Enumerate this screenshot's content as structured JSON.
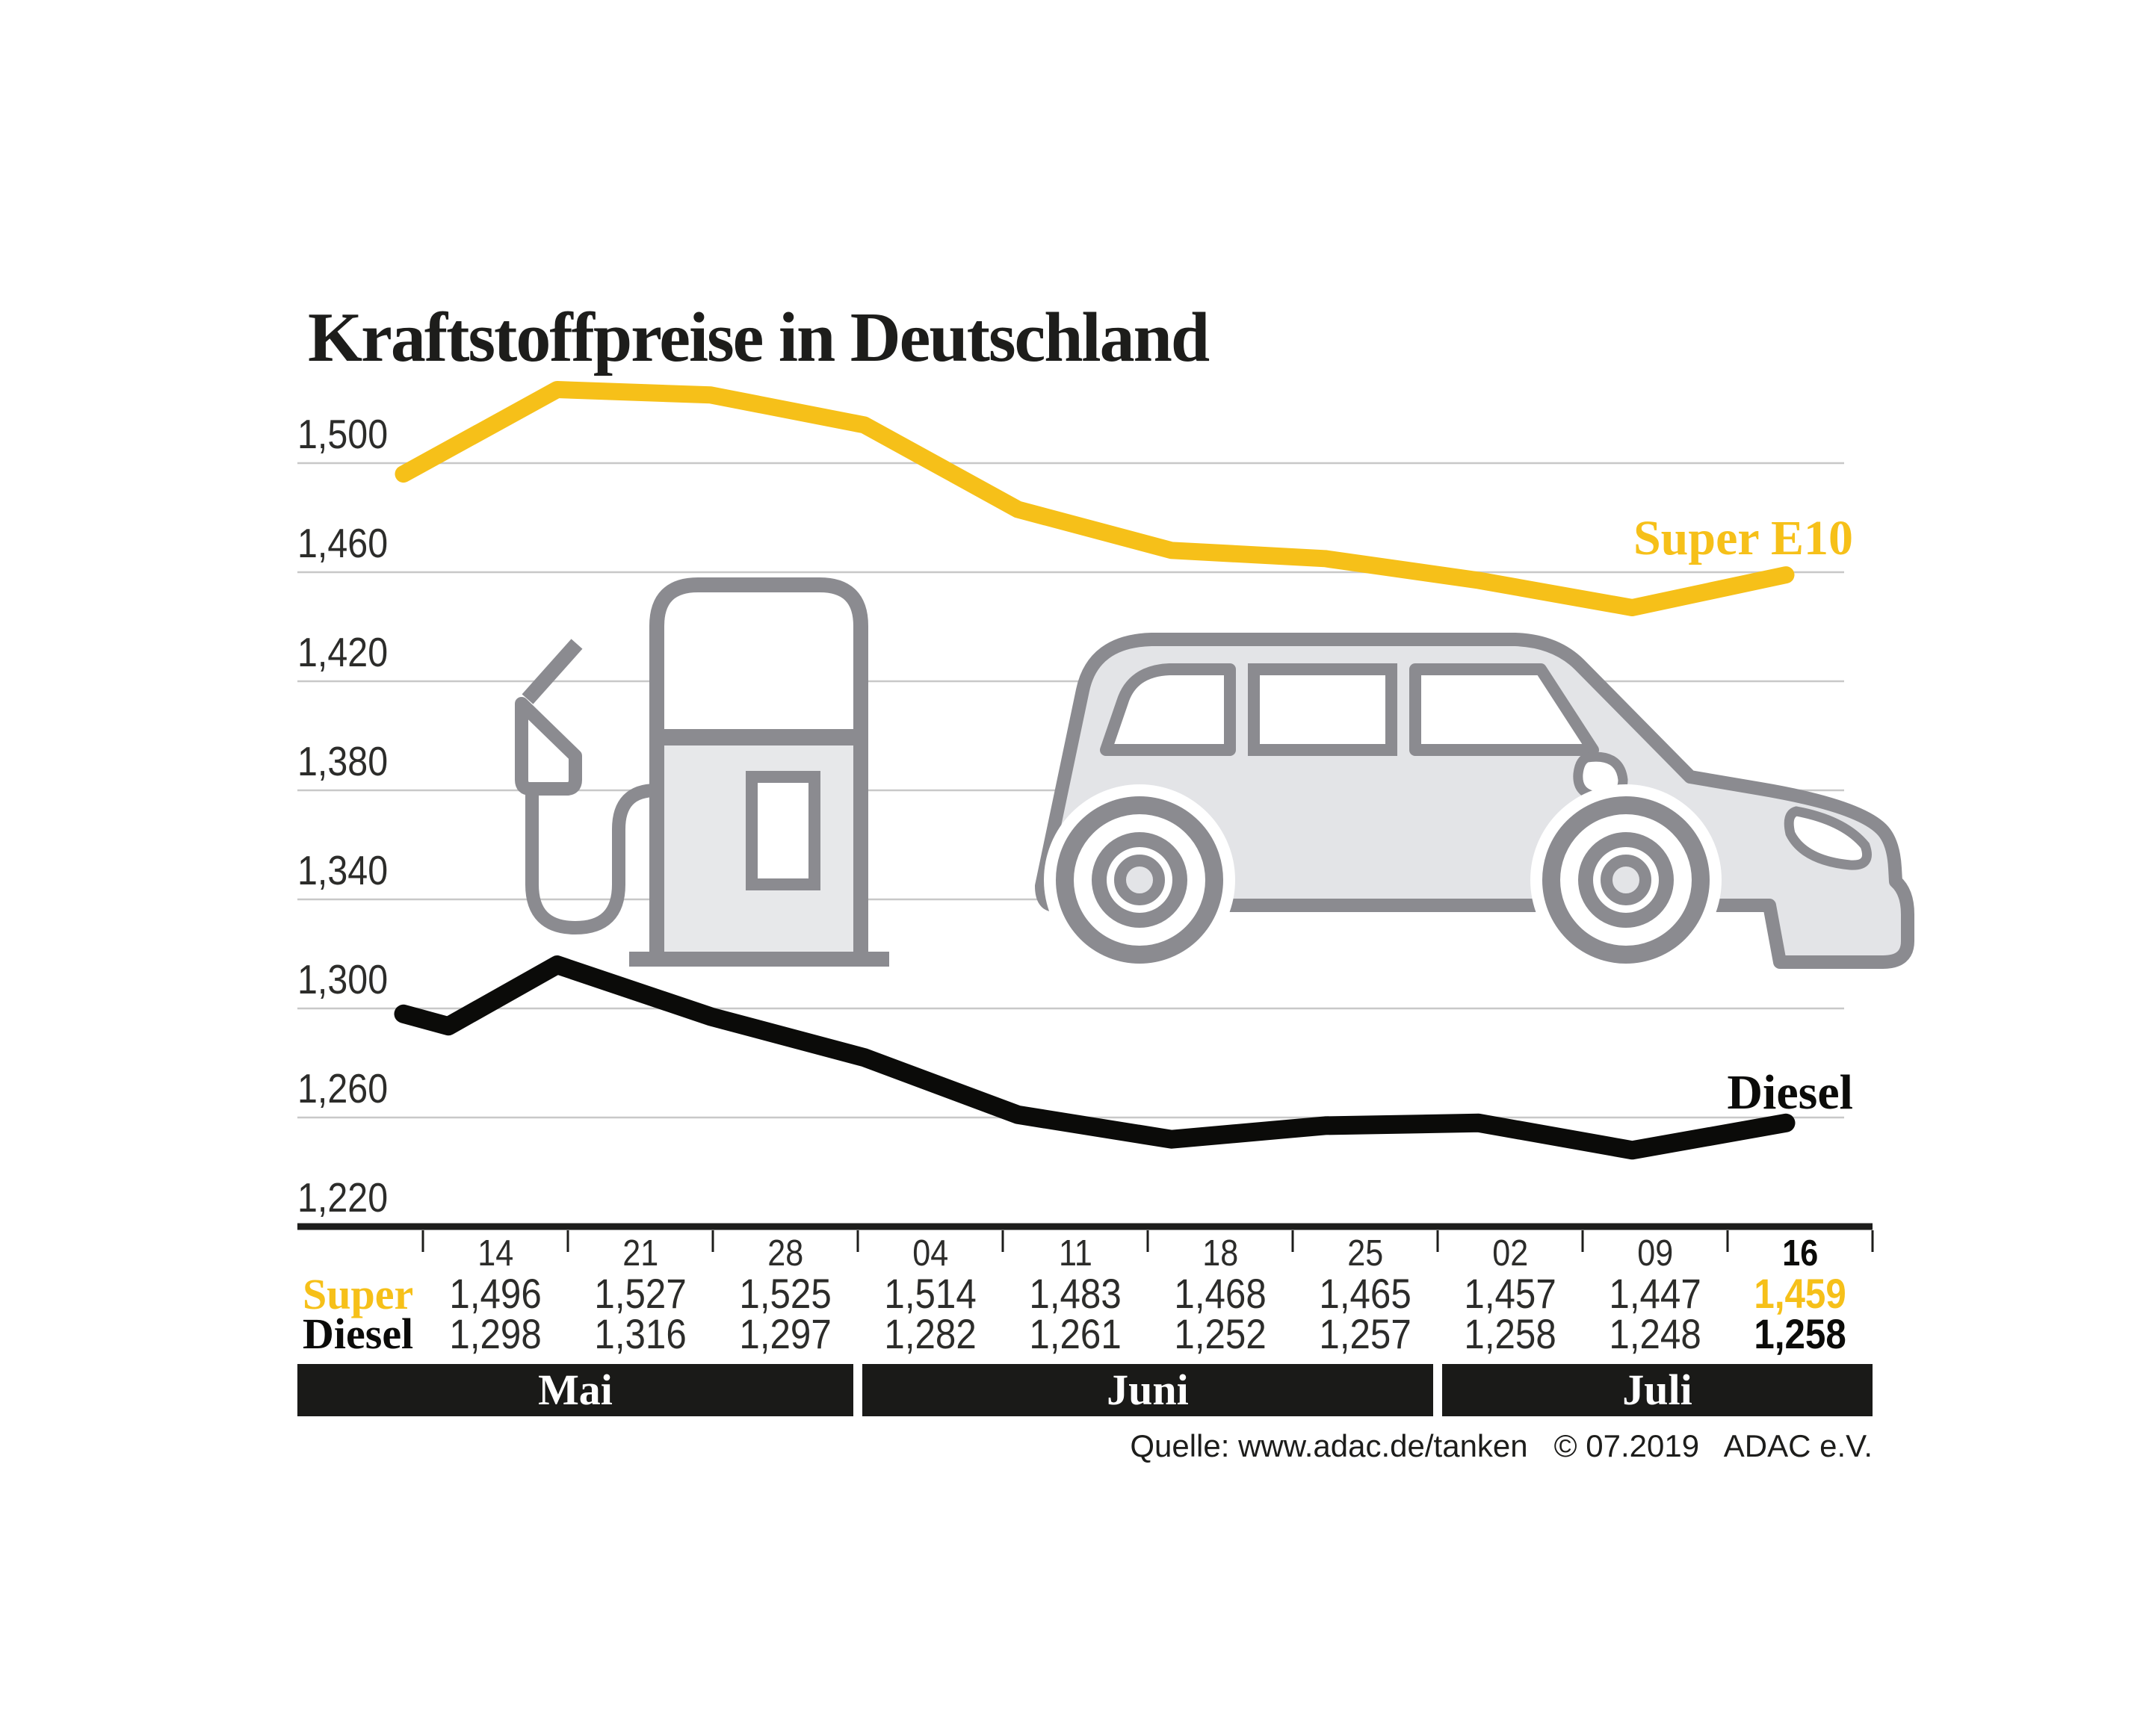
{
  "title": "Kraftstoffpreise in Deutschland",
  "source": "Quelle: www.adac.de/tanken   © 07.2019   ADAC e.V.",
  "colors": {
    "super_yellow": "#F6C019",
    "diesel_black": "#0b0b09",
    "grid": "#c8c8c8",
    "axis": "#1d1d1b",
    "text": "#2c2c2a",
    "month_bar": "#1a1a18",
    "illustration_outline": "#8b8b90",
    "illustration_fill": "#e3e4e7",
    "pump_fill": "#e7e8ea"
  },
  "chart_data": {
    "type": "line",
    "title": "Kraftstoffpreise in Deutschland",
    "x_dates": [
      "14",
      "21",
      "28",
      "04",
      "11",
      "18",
      "25",
      "02",
      "09",
      "16"
    ],
    "months": [
      {
        "label": "Mai",
        "cols": 3
      },
      {
        "label": "Juni",
        "cols": 4
      },
      {
        "label": "Juli",
        "cols": 3
      }
    ],
    "y_ticks_milli": [
      1500,
      1460,
      1420,
      1380,
      1340,
      1300,
      1260,
      1220
    ],
    "ylim_milli": [
      1220,
      1500
    ],
    "grid": true,
    "highlight_last_column": true,
    "legend_position": "end-of-line",
    "series": [
      {
        "id": "super",
        "label": "Super E10",
        "row_label": "Super",
        "values_milli": [
          1496,
          1527,
          1525,
          1514,
          1483,
          1468,
          1465,
          1457,
          1447,
          1459
        ]
      },
      {
        "id": "diesel",
        "label": "Diesel",
        "row_label": "Diesel",
        "values_milli": [
          1298,
          1316,
          1297,
          1282,
          1261,
          1252,
          1257,
          1258,
          1248,
          1258
        ],
        "lead_dip_milli": 1293.5
      }
    ]
  }
}
